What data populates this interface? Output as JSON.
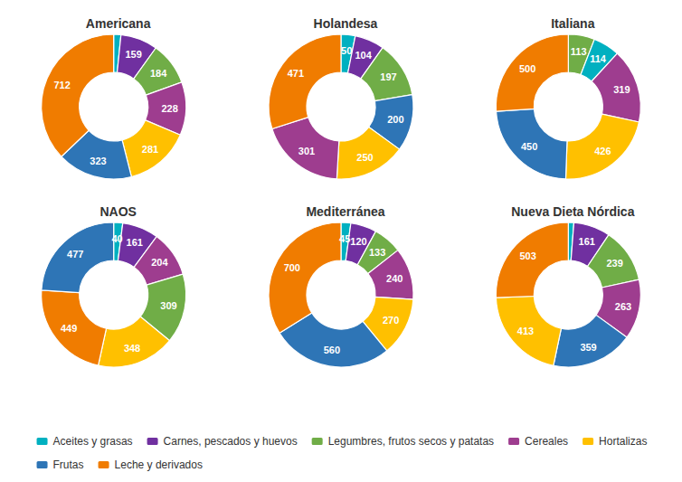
{
  "chart_data": [
    {
      "type": "pie",
      "title": "Americana",
      "categories": [
        "Aceites y grasas",
        "Carnes, pescados y huevos",
        "Legumbres, frutos secos y patatas",
        "Cereales",
        "Hortalizas",
        "Frutas",
        "Leche y derivados"
      ],
      "values": [
        31,
        159,
        184,
        228,
        281,
        323,
        712
      ],
      "value_labels": [
        null,
        "159",
        "184",
        "228",
        "281",
        "323",
        "712"
      ],
      "colors": [
        "#00B0C0",
        "#7030A0",
        "#70AD47",
        "#9E3D8F",
        "#FFC000",
        "#2E75B6",
        "#F07C00"
      ],
      "data_labels": true,
      "legend": "bottom"
    },
    {
      "type": "pie",
      "title": "Holandesa",
      "categories": [
        "Aceites y grasas",
        "Carnes, pescados y huevos",
        "Legumbres, frutos secos y patatas",
        "Frutas",
        "Hortalizas",
        "Cereales",
        "Leche y derivados"
      ],
      "values": [
        50,
        104,
        197,
        200,
        250,
        301,
        471
      ],
      "value_labels": [
        "50",
        "104",
        "197",
        "200",
        "250",
        "301",
        "471"
      ],
      "colors": [
        "#00B0C0",
        "#7030A0",
        "#70AD47",
        "#2E75B6",
        "#FFC000",
        "#9E3D8F",
        "#F07C00"
      ],
      "data_labels": true,
      "legend": "bottom"
    },
    {
      "type": "pie",
      "title": "Italiana",
      "categories": [
        "Legumbres, frutos secos y patatas",
        "Aceites y grasas",
        "Cereales",
        "Hortalizas",
        "Frutas",
        "Leche y derivados"
      ],
      "values": [
        113,
        114,
        319,
        426,
        450,
        500
      ],
      "value_labels": [
        "113",
        "114",
        "319",
        "426",
        "450",
        "500"
      ],
      "colors": [
        "#70AD47",
        "#00B0C0",
        "#9E3D8F",
        "#FFC000",
        "#2E75B6",
        "#F07C00"
      ],
      "data_labels": true,
      "legend": "bottom"
    },
    {
      "type": "pie",
      "title": "NAOS",
      "categories": [
        "Aceites y grasas",
        "Carnes, pescados y huevos",
        "Cereales",
        "Legumbres, frutos secos y patatas",
        "Hortalizas",
        "Leche y derivados",
        "Frutas"
      ],
      "values": [
        40,
        161,
        204,
        309,
        348,
        449,
        477
      ],
      "value_labels": [
        "40",
        "161",
        "204",
        "309",
        "348",
        "449",
        "477"
      ],
      "colors": [
        "#00B0C0",
        "#7030A0",
        "#9E3D8F",
        "#70AD47",
        "#FFC000",
        "#F07C00",
        "#2E75B6"
      ],
      "data_labels": true,
      "legend": "bottom"
    },
    {
      "type": "pie",
      "title": "Mediterránea",
      "categories": [
        "Aceites y grasas",
        "Carnes, pescados y huevos",
        "Legumbres, frutos secos y patatas",
        "Cereales",
        "Hortalizas",
        "Frutas",
        "Leche y derivados"
      ],
      "values": [
        45,
        120,
        133,
        240,
        270,
        560,
        700
      ],
      "value_labels": [
        "45",
        "120",
        "133",
        "240",
        "270",
        "560",
        "700"
      ],
      "colors": [
        "#00B0C0",
        "#7030A0",
        "#70AD47",
        "#9E3D8F",
        "#FFC000",
        "#2E75B6",
        "#F07C00"
      ],
      "data_labels": true,
      "legend": "bottom"
    },
    {
      "type": "pie",
      "title": "Nueva Dieta Nórdica",
      "categories": [
        "Aceites y grasas",
        "Carnes, pescados y huevos",
        "Legumbres, frutos secos y patatas",
        "Cereales",
        "Frutas",
        "Hortalizas",
        "Leche y derivados"
      ],
      "values": [
        24,
        161,
        239,
        263,
        359,
        413,
        503
      ],
      "value_labels": [
        null,
        "161",
        "239",
        "263",
        "359",
        "413",
        "503"
      ],
      "colors": [
        "#00B0C0",
        "#7030A0",
        "#70AD47",
        "#9E3D8F",
        "#2E75B6",
        "#FFC000",
        "#F07C00"
      ],
      "data_labels": true,
      "legend": "bottom"
    }
  ]
}
